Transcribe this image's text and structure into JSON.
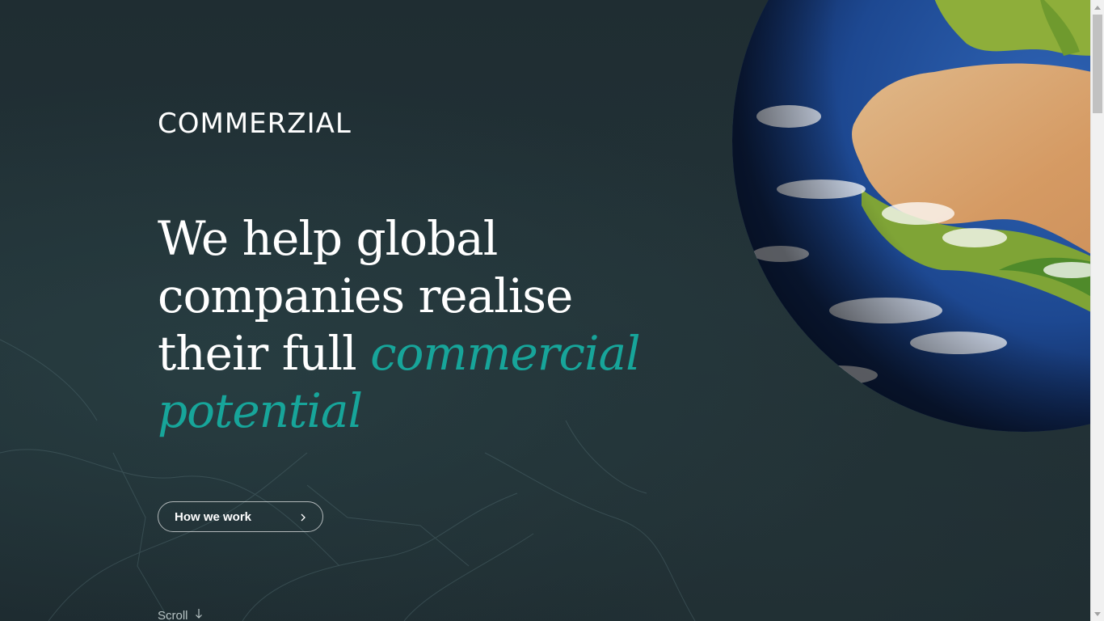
{
  "brand": {
    "logo_text": "COMMERZIAL"
  },
  "hero": {
    "headline_line1": "We help global",
    "headline_line2": "companies realise",
    "headline_line3_plain": "their full ",
    "headline_accent": "commercial potential"
  },
  "cta": {
    "label": "How we work",
    "icon": "chevron-right-icon"
  },
  "scroll": {
    "label": "Scroll",
    "icon": "arrow-down-icon"
  },
  "colors": {
    "background": "#1f2d32",
    "accent": "#17a59a",
    "text": "#ffffff"
  }
}
